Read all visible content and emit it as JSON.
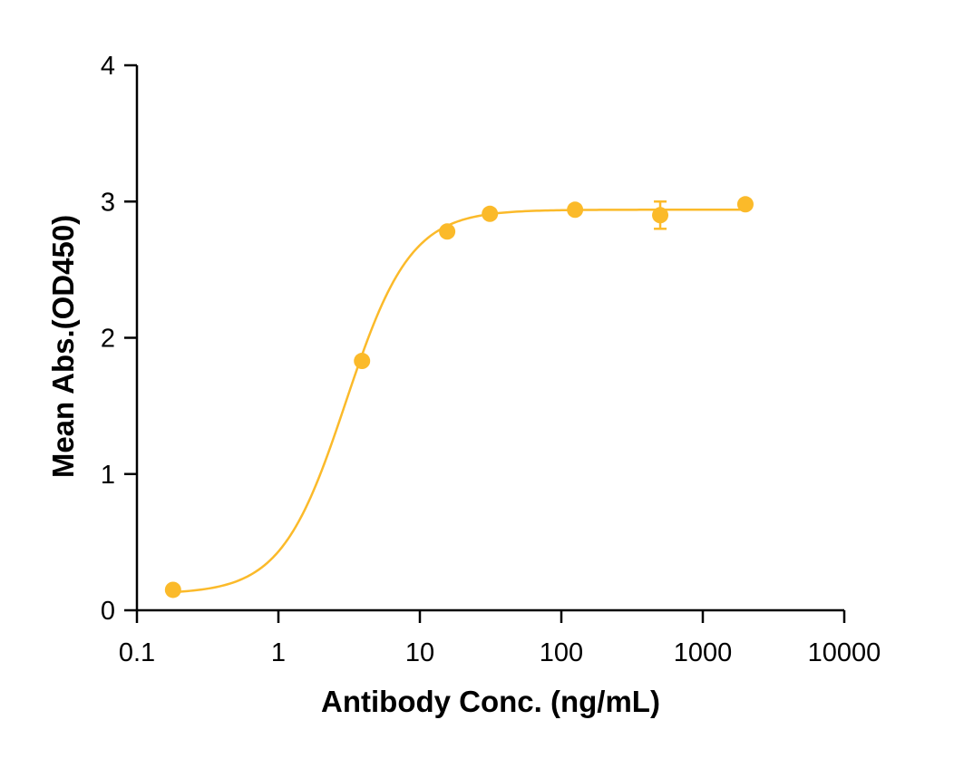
{
  "chart_data": {
    "type": "scatter",
    "title": "",
    "xlabel": "Antibody Conc. (ng/mL)",
    "ylabel": "Mean Abs.(OD450)",
    "x_scale": "log",
    "xlim": [
      0.1,
      10000
    ],
    "ylim": [
      0,
      4
    ],
    "x_tick_labels": [
      "0.1",
      "1",
      "10",
      "100",
      "1000",
      "10000"
    ],
    "y_tick_labels": [
      "0",
      "1",
      "2",
      "3",
      "4"
    ],
    "grid": false,
    "color": "#FBBA2A",
    "series": [
      {
        "x": [
          0.18,
          3.9,
          15.6,
          31.25,
          125,
          500,
          2000
        ],
        "y": [
          0.15,
          1.83,
          2.78,
          2.91,
          2.94,
          2.9,
          2.98
        ],
        "y_error": [
          0.01,
          0.02,
          0.02,
          0.02,
          0.02,
          0.1,
          0.01
        ]
      }
    ],
    "fit_curve": {
      "type": "4PL",
      "bottom": 0.12,
      "top": 2.94,
      "ec50": 3.0,
      "hill": 1.9
    }
  }
}
